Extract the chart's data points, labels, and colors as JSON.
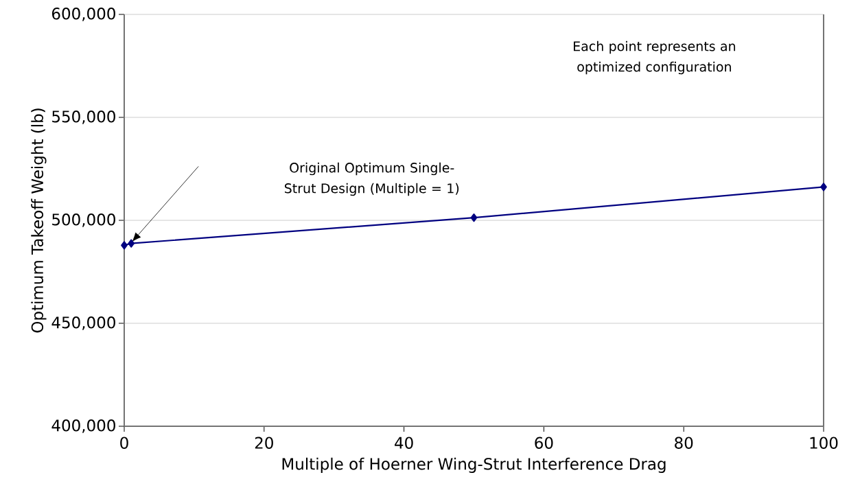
{
  "chart_data": {
    "type": "line",
    "xlabel": "Multiple of Hoerner Wing-Strut Interference Drag",
    "ylabel": "Optimum Takeoff Weight (lb)",
    "x": [
      0,
      1,
      50,
      100
    ],
    "series": [
      {
        "color": "#000080",
        "values": [
          487900,
          488800,
          501300,
          516200
        ]
      }
    ],
    "xlim": [
      0,
      100
    ],
    "ylim": [
      400000,
      600000
    ],
    "xticks": [
      0,
      20,
      40,
      60,
      80,
      100
    ],
    "yticks": [
      {
        "value": 400000,
        "label": "400,000"
      },
      {
        "value": 450000,
        "label": "450,000"
      },
      {
        "value": 500000,
        "label": "500,000"
      },
      {
        "value": 550000,
        "label": "550,000"
      },
      {
        "value": 600000,
        "label": "600,000"
      }
    ],
    "grid": "y",
    "marker": "diamond",
    "line_style": "solid",
    "annotations": [
      "Each point represents an optimized configuration",
      "Original Optimum Single-Strut Design (Multiple = 1)"
    ]
  }
}
